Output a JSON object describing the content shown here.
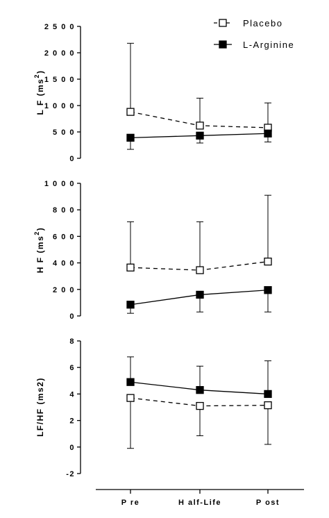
{
  "legend": {
    "placement": "top-right",
    "items": [
      {
        "label": "Placebo",
        "marker": "open-square",
        "line": "dashed"
      },
      {
        "label": "L-Arginine",
        "marker": "filled-square",
        "line": "solid"
      }
    ]
  },
  "x_axis": {
    "categories": [
      "Pre",
      "Half-Life",
      "Post"
    ],
    "display_labels": [
      "P re",
      "H alf-Life",
      "P ost"
    ]
  },
  "colors": {
    "ink": "#000000",
    "background": "#ffffff",
    "open_marker_fill": "#ffffff"
  },
  "chart_data": [
    {
      "type": "line",
      "panel": "top",
      "ylabel_main": "L F  (ms",
      "ylabel_sup": "2",
      "ylabel_end": ")",
      "ylim": [
        0,
        2500
      ],
      "yticks": [
        0,
        500,
        1000,
        1500,
        2000,
        2500
      ],
      "ytick_labels": [
        "0",
        "5 0 0",
        "1 0 0 0",
        "1 5 0 0",
        "2 0 0 0",
        "2 5 0 0"
      ],
      "categories": [
        "Pre",
        "Half-Life",
        "Post"
      ],
      "grid": false,
      "series": [
        {
          "name": "Placebo",
          "values": [
            880,
            620,
            580
          ],
          "error_upper": [
            2180,
            1140,
            1050
          ],
          "error_lower": null
        },
        {
          "name": "L-Arginine",
          "values": [
            390,
            430,
            470
          ],
          "error_upper": null,
          "error_lower": [
            170,
            290,
            310
          ]
        }
      ]
    },
    {
      "type": "line",
      "panel": "middle",
      "ylabel_main": "H F  (ms",
      "ylabel_sup": "2",
      "ylabel_end": ")",
      "ylim": [
        0,
        1000
      ],
      "yticks": [
        0,
        200,
        400,
        600,
        800,
        1000
      ],
      "ytick_labels": [
        "0",
        "2 0 0",
        "4 0 0",
        "6 0 0",
        "8 0 0",
        "1 0 0 0"
      ],
      "categories": [
        "Pre",
        "Half-Life",
        "Post"
      ],
      "grid": false,
      "series": [
        {
          "name": "Placebo",
          "values": [
            365,
            345,
            410
          ],
          "error_upper": [
            710,
            710,
            910
          ],
          "error_lower": null
        },
        {
          "name": "L-Arginine",
          "values": [
            85,
            160,
            195
          ],
          "error_upper": null,
          "error_lower": [
            20,
            30,
            30
          ]
        }
      ]
    },
    {
      "type": "line",
      "panel": "bottom",
      "ylabel_main": "LF/HF (ms2)",
      "ylabel_sup": "",
      "ylabel_end": "",
      "ylim": [
        -2,
        8
      ],
      "yticks": [
        -2,
        0,
        2,
        4,
        6,
        8
      ],
      "ytick_labels": [
        "-2",
        "0",
        "2",
        "4",
        "6",
        "8"
      ],
      "categories": [
        "Pre",
        "Half-Life",
        "Post"
      ],
      "grid": false,
      "series": [
        {
          "name": "Placebo",
          "values": [
            3.7,
            3.1,
            3.15
          ],
          "error_upper": null,
          "error_lower": [
            -0.1,
            0.85,
            0.2
          ]
        },
        {
          "name": "L-Arginine",
          "values": [
            4.9,
            4.3,
            4.0
          ],
          "error_upper": [
            6.8,
            6.1,
            6.5
          ],
          "error_lower": null
        }
      ]
    }
  ]
}
